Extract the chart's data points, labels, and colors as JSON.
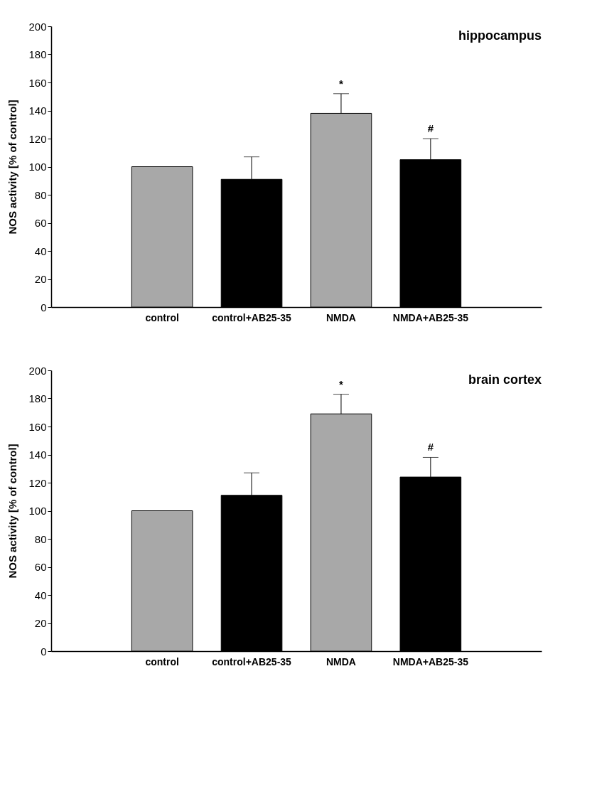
{
  "chart_data": [
    {
      "type": "bar",
      "title": "hippocampus",
      "ylabel": "NOS activity [% of control]",
      "categories": [
        "control",
        "control+AB25-35",
        "NMDA",
        "NMDA+AB25-35"
      ],
      "values": [
        100,
        91,
        138,
        105
      ],
      "colors": [
        "#a8a8a8",
        "#000000",
        "#a8a8a8",
        "#000000"
      ],
      "errors": [
        null,
        [
          91,
          107
        ],
        [
          138,
          152
        ],
        [
          105,
          120
        ]
      ],
      "ylim": [
        0,
        200
      ],
      "yticks": [
        0,
        20,
        40,
        60,
        80,
        100,
        120,
        140,
        160,
        180,
        200
      ],
      "grid": false,
      "annotations": [
        {
          "text": "*",
          "x": "NMDA",
          "y": 152
        },
        {
          "text": "#",
          "x": "NMDA+AB25-35",
          "y": 120
        }
      ]
    },
    {
      "type": "bar",
      "title": "brain cortex",
      "ylabel": "NOS activity [% of control]",
      "categories": [
        "control",
        "control+AB25-35",
        "NMDA",
        "NMDA+AB25-35"
      ],
      "values": [
        100,
        111,
        169,
        124
      ],
      "colors": [
        "#a8a8a8",
        "#000000",
        "#a8a8a8",
        "#000000"
      ],
      "errors": [
        null,
        [
          111,
          127
        ],
        [
          169,
          183
        ],
        [
          124,
          138
        ]
      ],
      "ylim": [
        0,
        200
      ],
      "yticks": [
        0,
        20,
        40,
        60,
        80,
        100,
        120,
        140,
        160,
        180,
        200
      ],
      "grid": false,
      "annotations": [
        {
          "text": "*",
          "x": "NMDA",
          "y": 183
        },
        {
          "text": "#",
          "x": "NMDA+AB25-35",
          "y": 138
        }
      ]
    }
  ]
}
